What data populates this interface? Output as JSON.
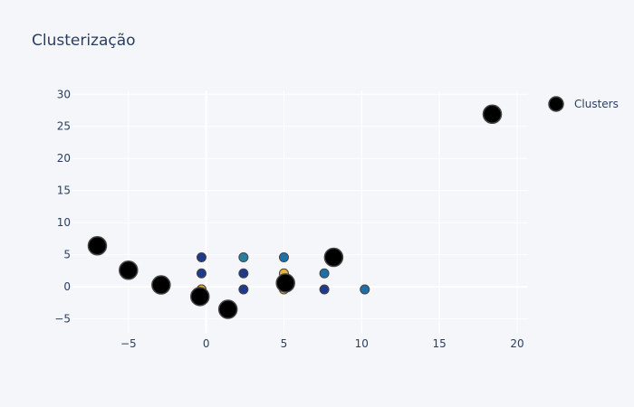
{
  "title": "Clusterização",
  "chart_data": {
    "type": "scatter",
    "title": "Clusterização",
    "xlabel": "",
    "ylabel": "",
    "xlim": [
      -8.6,
      20.7
    ],
    "ylim": [
      -7.3,
      30.6
    ],
    "x_ticks": [
      -5,
      0,
      5,
      10,
      15,
      20
    ],
    "y_ticks": [
      -5,
      0,
      5,
      10,
      15,
      20,
      25,
      30
    ],
    "x_tick_labels": [
      "−5",
      "0",
      "5",
      "10",
      "15",
      "20"
    ],
    "y_tick_labels": [
      "−5",
      "0",
      "5",
      "10",
      "15",
      "20",
      "25",
      "30"
    ],
    "grid": true,
    "legend_position": "top-right",
    "series": [
      {
        "name": "",
        "marker_size": "small",
        "points": [
          {
            "x": -0.3,
            "y": 4.6,
            "color": "#1f3a8a"
          },
          {
            "x": -0.3,
            "y": 2.1,
            "color": "#1f3a8a"
          },
          {
            "x": -0.3,
            "y": -0.4,
            "color": "#1a2a6c"
          },
          {
            "x": -0.3,
            "y": -0.4,
            "color": "#e8b33a"
          },
          {
            "x": 2.4,
            "y": 4.6,
            "color": "#2a7f9e"
          },
          {
            "x": 2.4,
            "y": 2.1,
            "color": "#1f3a8a"
          },
          {
            "x": 2.4,
            "y": -0.4,
            "color": "#1f3a8a"
          },
          {
            "x": 5.0,
            "y": 4.6,
            "color": "#1f6fa8"
          },
          {
            "x": 5.0,
            "y": 2.1,
            "color": "#e8b33a"
          },
          {
            "x": 5.0,
            "y": -0.4,
            "color": "#e8b33a"
          },
          {
            "x": 7.6,
            "y": 2.1,
            "color": "#1f6fa8"
          },
          {
            "x": 7.6,
            "y": -0.4,
            "color": "#1f3a8a"
          },
          {
            "x": 10.2,
            "y": -0.4,
            "color": "#1f6fa8"
          }
        ]
      },
      {
        "name": "Clusters",
        "marker_size": "large",
        "color": "#000000",
        "points": [
          {
            "x": -7.0,
            "y": 6.4
          },
          {
            "x": -5.0,
            "y": 2.6
          },
          {
            "x": -2.9,
            "y": 0.3
          },
          {
            "x": -0.4,
            "y": -1.5
          },
          {
            "x": 1.4,
            "y": -3.5
          },
          {
            "x": 5.1,
            "y": 0.6
          },
          {
            "x": 8.2,
            "y": 4.6
          },
          {
            "x": 18.4,
            "y": 26.9
          }
        ]
      }
    ]
  },
  "colors": {
    "background": "#f5f6fa",
    "plot_background": "#f5f6fa",
    "grid": "#ffffff",
    "text": "#2a3f5f",
    "marker_outline": "#444444"
  }
}
